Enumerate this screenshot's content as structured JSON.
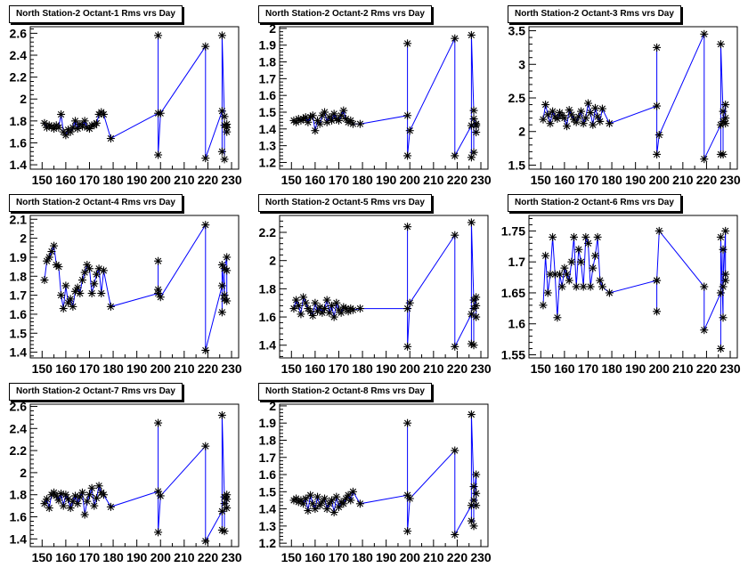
{
  "colors": {
    "line": "#0000ff",
    "marker": "#000000",
    "background": "#ffffff"
  },
  "chart_data": [
    {
      "type": "line",
      "title": "North Station-2 Octant-1 Rms vrs Day",
      "xlim": [
        145,
        233
      ],
      "ylim": [
        1.36,
        2.66
      ],
      "xticks": [
        "150",
        "160",
        "170",
        "180",
        "190",
        "200",
        "210",
        "220",
        "230"
      ],
      "yticks": [
        "1.4",
        "1.6",
        "1.8",
        "2",
        "2.2",
        "2.4",
        "2.6"
      ],
      "x": [
        151,
        152,
        153,
        154,
        155,
        156,
        157,
        158,
        159,
        160,
        161,
        162,
        163,
        164,
        165,
        166,
        167,
        168,
        169,
        170,
        171,
        172,
        173,
        174,
        175,
        176,
        179,
        199,
        199,
        199,
        200,
        219,
        219,
        226,
        226,
        226,
        227,
        227,
        227,
        228,
        228,
        228
      ],
      "y": [
        1.78,
        1.74,
        1.76,
        1.75,
        1.73,
        1.76,
        1.74,
        1.86,
        1.7,
        1.67,
        1.72,
        1.7,
        1.74,
        1.8,
        1.73,
        1.77,
        1.75,
        1.8,
        1.74,
        1.73,
        1.76,
        1.76,
        1.78,
        1.86,
        1.88,
        1.86,
        1.64,
        1.87,
        2.58,
        1.49,
        1.87,
        2.48,
        1.46,
        1.89,
        1.52,
        2.58,
        1.84,
        1.45,
        1.76,
        1.74,
        1.7,
        1.77
      ]
    },
    {
      "type": "line",
      "title": "North Station-2 Octant-2 Rms vrs Day",
      "xlim": [
        145,
        233
      ],
      "ylim": [
        1.16,
        2.01
      ],
      "xticks": [
        "150",
        "160",
        "170",
        "180",
        "190",
        "200",
        "210",
        "220",
        "230"
      ],
      "yticks": [
        "1.2",
        "1.3",
        "1.4",
        "1.5",
        "1.6",
        "1.7",
        "1.8",
        "1.9",
        "2"
      ],
      "x": [
        151,
        152,
        153,
        154,
        155,
        156,
        157,
        158,
        159,
        160,
        161,
        162,
        163,
        164,
        165,
        166,
        167,
        168,
        169,
        170,
        171,
        172,
        173,
        174,
        175,
        176,
        179,
        199,
        199,
        199,
        200,
        219,
        219,
        226,
        226,
        226,
        227,
        227,
        227,
        228,
        228,
        228
      ],
      "y": [
        1.45,
        1.44,
        1.46,
        1.45,
        1.46,
        1.47,
        1.44,
        1.47,
        1.48,
        1.39,
        1.45,
        1.43,
        1.48,
        1.5,
        1.44,
        1.47,
        1.45,
        1.49,
        1.46,
        1.45,
        1.48,
        1.51,
        1.46,
        1.44,
        1.45,
        1.43,
        1.43,
        1.48,
        1.91,
        1.24,
        1.39,
        1.94,
        1.24,
        1.42,
        1.23,
        1.96,
        1.51,
        1.26,
        1.46,
        1.42,
        1.38,
        1.43
      ]
    },
    {
      "type": "line",
      "title": "North Station-2 Octant-3 Rms vrs Day",
      "xlim": [
        145,
        233
      ],
      "ylim": [
        1.44,
        3.56
      ],
      "xticks": [
        "150",
        "160",
        "170",
        "180",
        "190",
        "200",
        "210",
        "220",
        "230"
      ],
      "yticks": [
        "1.5",
        "2",
        "2.5",
        "3",
        "3.5"
      ],
      "x": [
        151,
        152,
        153,
        154,
        155,
        156,
        157,
        158,
        159,
        160,
        161,
        162,
        163,
        164,
        165,
        166,
        167,
        168,
        169,
        170,
        171,
        172,
        173,
        174,
        175,
        176,
        179,
        199,
        199,
        199,
        200,
        219,
        219,
        226,
        226,
        226,
        227,
        227,
        227,
        228,
        228,
        228
      ],
      "y": [
        2.18,
        2.4,
        2.25,
        2.12,
        2.3,
        2.22,
        2.19,
        2.28,
        2.24,
        2.2,
        2.08,
        2.32,
        2.25,
        2.18,
        2.14,
        2.22,
        2.3,
        2.12,
        2.2,
        2.42,
        2.28,
        2.1,
        2.35,
        2.22,
        2.15,
        2.34,
        2.12,
        2.38,
        3.25,
        1.66,
        1.95,
        3.45,
        1.59,
        2.1,
        1.66,
        3.3,
        2.3,
        1.66,
        2.15,
        2.4,
        2.12,
        2.2
      ]
    },
    {
      "type": "line",
      "title": "North Station-2 Octant-4 Rms vrs Day",
      "xlim": [
        145,
        233
      ],
      "ylim": [
        1.37,
        2.12
      ],
      "xticks": [
        "150",
        "160",
        "170",
        "180",
        "190",
        "200",
        "210",
        "220",
        "230"
      ],
      "yticks": [
        "1.4",
        "1.5",
        "1.6",
        "1.7",
        "1.8",
        "1.9",
        "2",
        "2.1"
      ],
      "x": [
        151,
        152,
        153,
        154,
        155,
        156,
        157,
        158,
        159,
        160,
        161,
        162,
        163,
        164,
        165,
        166,
        167,
        168,
        169,
        170,
        171,
        172,
        173,
        174,
        175,
        176,
        179,
        199,
        199,
        199,
        200,
        219,
        219,
        226,
        226,
        226,
        227,
        227,
        227,
        228,
        228,
        228
      ],
      "y": [
        1.78,
        1.88,
        1.9,
        1.93,
        1.96,
        1.86,
        1.85,
        1.7,
        1.63,
        1.75,
        1.66,
        1.68,
        1.64,
        1.72,
        1.74,
        1.71,
        1.78,
        1.82,
        1.86,
        1.84,
        1.71,
        1.76,
        1.81,
        1.84,
        1.71,
        1.83,
        1.64,
        1.71,
        1.88,
        1.73,
        1.69,
        2.07,
        1.41,
        1.75,
        1.61,
        1.86,
        1.7,
        1.68,
        1.84,
        1.9,
        1.67,
        1.83
      ]
    },
    {
      "type": "line",
      "title": "North Station-2 Octant-5 Rms vrs Day",
      "xlim": [
        145,
        233
      ],
      "ylim": [
        1.31,
        2.32
      ],
      "xticks": [
        "150",
        "160",
        "170",
        "180",
        "190",
        "200",
        "210",
        "220",
        "230"
      ],
      "yticks": [
        "1.4",
        "1.6",
        "1.8",
        "2",
        "2.2"
      ],
      "x": [
        151,
        152,
        153,
        154,
        155,
        156,
        157,
        158,
        159,
        160,
        161,
        162,
        163,
        164,
        165,
        166,
        167,
        168,
        169,
        170,
        171,
        172,
        173,
        174,
        175,
        176,
        179,
        199,
        199,
        199,
        200,
        219,
        219,
        226,
        226,
        226,
        227,
        227,
        227,
        228,
        228,
        228
      ],
      "y": [
        1.66,
        1.72,
        1.68,
        1.62,
        1.74,
        1.7,
        1.66,
        1.64,
        1.61,
        1.7,
        1.64,
        1.67,
        1.63,
        1.66,
        1.72,
        1.63,
        1.68,
        1.6,
        1.7,
        1.65,
        1.63,
        1.67,
        1.66,
        1.64,
        1.66,
        1.65,
        1.66,
        1.66,
        2.24,
        1.39,
        1.7,
        2.18,
        1.39,
        1.62,
        1.41,
        2.27,
        1.72,
        1.4,
        1.66,
        1.74,
        1.6,
        1.68
      ]
    },
    {
      "type": "line",
      "title": "North Station-2 Octant-6 Rms vrs Day",
      "xlim": [
        145,
        233
      ],
      "ylim": [
        1.545,
        1.775
      ],
      "xticks": [
        "150",
        "160",
        "170",
        "180",
        "190",
        "200",
        "210",
        "220",
        "230"
      ],
      "yticks": [
        "1.55",
        "1.6",
        "1.65",
        "1.7",
        "1.75"
      ],
      "x": [
        151,
        152,
        153,
        154,
        155,
        156,
        157,
        158,
        159,
        160,
        161,
        162,
        163,
        164,
        165,
        166,
        167,
        168,
        169,
        170,
        171,
        172,
        173,
        174,
        175,
        176,
        179,
        199,
        199,
        199,
        200,
        219,
        219,
        226,
        226,
        226,
        227,
        227,
        227,
        228,
        228,
        228
      ],
      "y": [
        1.63,
        1.71,
        1.65,
        1.68,
        1.74,
        1.68,
        1.61,
        1.68,
        1.66,
        1.69,
        1.68,
        1.67,
        1.7,
        1.74,
        1.66,
        1.72,
        1.7,
        1.66,
        1.74,
        1.73,
        1.66,
        1.69,
        1.71,
        1.74,
        1.67,
        1.66,
        1.65,
        1.67,
        1.62,
        1.67,
        1.75,
        1.66,
        1.59,
        1.65,
        1.56,
        1.74,
        1.61,
        1.72,
        1.66,
        1.75,
        1.68,
        1.67
      ]
    },
    {
      "type": "line",
      "title": "North Station-2 Octant-7 Rms vrs Day",
      "xlim": [
        145,
        233
      ],
      "ylim": [
        1.33,
        2.62
      ],
      "xticks": [
        "150",
        "160",
        "170",
        "180",
        "190",
        "200",
        "210",
        "220",
        "230"
      ],
      "yticks": [
        "1.4",
        "1.6",
        "1.8",
        "2",
        "2.2",
        "2.4",
        "2.6"
      ],
      "x": [
        151,
        152,
        153,
        154,
        155,
        156,
        157,
        158,
        159,
        160,
        161,
        162,
        163,
        164,
        165,
        166,
        167,
        168,
        169,
        170,
        171,
        172,
        173,
        174,
        175,
        176,
        179,
        199,
        199,
        199,
        200,
        219,
        219,
        226,
        226,
        226,
        227,
        227,
        227,
        228,
        228,
        228
      ],
      "y": [
        1.72,
        1.76,
        1.68,
        1.8,
        1.82,
        1.79,
        1.75,
        1.81,
        1.7,
        1.8,
        1.76,
        1.68,
        1.74,
        1.79,
        1.72,
        1.78,
        1.82,
        1.62,
        1.74,
        1.8,
        1.86,
        1.7,
        1.77,
        1.88,
        1.82,
        1.8,
        1.69,
        1.83,
        2.45,
        1.46,
        1.79,
        2.24,
        1.38,
        1.65,
        1.48,
        2.52,
        1.78,
        1.47,
        1.72,
        1.8,
        1.68,
        1.76
      ]
    },
    {
      "type": "line",
      "title": "North Station-2 Octant-8 Rms vrs Day",
      "xlim": [
        145,
        233
      ],
      "ylim": [
        1.18,
        2.01
      ],
      "xticks": [
        "150",
        "160",
        "170",
        "180",
        "190",
        "200",
        "210",
        "220",
        "230"
      ],
      "yticks": [
        "1.2",
        "1.3",
        "1.4",
        "1.5",
        "1.6",
        "1.7",
        "1.8",
        "1.9",
        "2"
      ],
      "x": [
        151,
        152,
        153,
        154,
        155,
        156,
        157,
        158,
        159,
        160,
        161,
        162,
        163,
        164,
        165,
        166,
        167,
        168,
        169,
        170,
        171,
        172,
        173,
        174,
        175,
        176,
        179,
        199,
        199,
        199,
        200,
        219,
        219,
        226,
        226,
        226,
        227,
        227,
        227,
        228,
        228,
        228
      ],
      "y": [
        1.45,
        1.46,
        1.44,
        1.45,
        1.43,
        1.46,
        1.39,
        1.48,
        1.43,
        1.4,
        1.47,
        1.42,
        1.44,
        1.46,
        1.4,
        1.43,
        1.45,
        1.38,
        1.47,
        1.41,
        1.44,
        1.43,
        1.46,
        1.48,
        1.45,
        1.5,
        1.43,
        1.48,
        1.9,
        1.27,
        1.46,
        1.74,
        1.25,
        1.42,
        1.33,
        1.95,
        1.53,
        1.3,
        1.45,
        1.6,
        1.42,
        1.49
      ]
    }
  ]
}
